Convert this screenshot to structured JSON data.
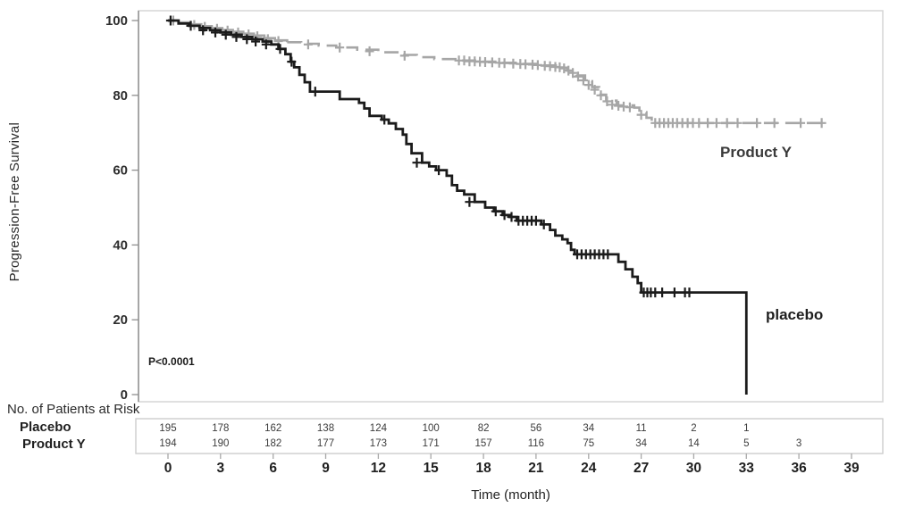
{
  "chart_data": {
    "type": "line",
    "subtype": "kaplan-meier-step",
    "title": "",
    "ylabel": "Progression-Free Survival",
    "xlabel": "Time (month)",
    "annotation": "P<0.0001",
    "xlim": [
      0,
      39
    ],
    "ylim": [
      0,
      100
    ],
    "xticks": [
      0,
      3,
      6,
      9,
      12,
      15,
      18,
      21,
      24,
      27,
      30,
      33,
      36,
      39
    ],
    "yticks": [
      0,
      20,
      40,
      60,
      80,
      100
    ],
    "grid": false,
    "legend_position": "curve-labels-inline",
    "colors": {
      "frame": "#d6d6d6",
      "axis": "#8f8f8f",
      "risk_box": "#c9c9c9",
      "risk_tick": "#a8a8a8"
    },
    "series": [
      {
        "name": "Product Y",
        "key": "product-y",
        "color": "#a6a6a6",
        "line_width": 2.6,
        "dash": [
          16,
          8
        ],
        "dash_from": 6.8,
        "end": 37.4,
        "steps": [
          [
            0,
            100
          ],
          [
            0.6,
            99.5
          ],
          [
            1.3,
            99
          ],
          [
            1.9,
            98.5
          ],
          [
            2.5,
            98
          ],
          [
            3.1,
            97.5
          ],
          [
            3.7,
            97
          ],
          [
            4.3,
            96.5
          ],
          [
            4.9,
            96
          ],
          [
            5.5,
            95.3
          ],
          [
            6.1,
            94.7
          ],
          [
            6.8,
            94.2
          ],
          [
            7.6,
            93.8
          ],
          [
            8.6,
            93.3
          ],
          [
            9.6,
            92.8
          ],
          [
            10.8,
            92.2
          ],
          [
            12.0,
            91.5
          ],
          [
            13.2,
            90.8
          ],
          [
            14.2,
            90.2
          ],
          [
            15.2,
            89.7
          ],
          [
            16.4,
            89.3
          ],
          [
            17.6,
            89.0
          ],
          [
            18.8,
            88.7
          ],
          [
            20.0,
            88.4
          ],
          [
            21.2,
            88.0
          ],
          [
            22.3,
            87.4
          ],
          [
            22.8,
            86.6
          ],
          [
            23.3,
            85.3
          ],
          [
            23.8,
            83.8
          ],
          [
            24.2,
            82.2
          ],
          [
            24.6,
            80.2
          ],
          [
            25.0,
            78.6
          ],
          [
            25.6,
            77.3
          ],
          [
            26.6,
            76.7
          ],
          [
            26.9,
            75.5
          ],
          [
            27.3,
            74.0
          ],
          [
            27.6,
            72.6
          ]
        ],
        "censors": [
          [
            0.3,
            100
          ],
          [
            1.5,
            98.8
          ],
          [
            2.1,
            98.3
          ],
          [
            2.8,
            97.8
          ],
          [
            3.4,
            97.3
          ],
          [
            4.0,
            96.8
          ],
          [
            4.6,
            96.3
          ],
          [
            5.1,
            95.8
          ],
          [
            5.7,
            95.0
          ],
          [
            6.3,
            94.5
          ],
          [
            8.0,
            93.6
          ],
          [
            9.8,
            92.8
          ],
          [
            11.5,
            91.8
          ],
          [
            13.5,
            90.6
          ],
          [
            16.6,
            89.3
          ],
          [
            16.9,
            89.3
          ],
          [
            17.2,
            89.1
          ],
          [
            17.5,
            89.1
          ],
          [
            17.8,
            89.0
          ],
          [
            18.1,
            88.9
          ],
          [
            18.5,
            88.8
          ],
          [
            18.9,
            88.7
          ],
          [
            19.2,
            88.6
          ],
          [
            19.7,
            88.5
          ],
          [
            20.1,
            88.4
          ],
          [
            20.4,
            88.3
          ],
          [
            20.8,
            88.2
          ],
          [
            21.1,
            88.1
          ],
          [
            21.5,
            87.9
          ],
          [
            21.8,
            87.8
          ],
          [
            22.1,
            87.6
          ],
          [
            22.35,
            87.5
          ],
          [
            22.6,
            87.2
          ],
          [
            22.85,
            86.6
          ],
          [
            23.1,
            86.0
          ],
          [
            23.4,
            85.0
          ],
          [
            23.7,
            84.0
          ],
          [
            24.0,
            82.8
          ],
          [
            24.35,
            81.5
          ],
          [
            24.7,
            80.0
          ],
          [
            25.05,
            78.4
          ],
          [
            25.35,
            77.5
          ],
          [
            25.7,
            77.2
          ],
          [
            26.0,
            77.0
          ],
          [
            26.35,
            76.8
          ],
          [
            27.0,
            74.8
          ],
          [
            27.8,
            72.6
          ],
          [
            28.05,
            72.6
          ],
          [
            28.3,
            72.6
          ],
          [
            28.55,
            72.6
          ],
          [
            28.8,
            72.6
          ],
          [
            29.05,
            72.6
          ],
          [
            29.35,
            72.6
          ],
          [
            29.65,
            72.6
          ],
          [
            29.95,
            72.6
          ],
          [
            30.3,
            72.6
          ],
          [
            30.8,
            72.6
          ],
          [
            31.3,
            72.6
          ],
          [
            31.9,
            72.6
          ],
          [
            32.5,
            72.6
          ],
          [
            33.6,
            72.6
          ],
          [
            34.6,
            72.6
          ],
          [
            36.1,
            72.6
          ],
          [
            37.3,
            72.6
          ]
        ]
      },
      {
        "name": "placebo",
        "key": "placebo",
        "color": "#1b1b1b",
        "line_width": 2.8,
        "dash": null,
        "dash_from": null,
        "end": 33,
        "steps": [
          [
            0,
            100
          ],
          [
            0.6,
            99.2
          ],
          [
            1.2,
            98.6
          ],
          [
            1.8,
            98
          ],
          [
            2.4,
            97.4
          ],
          [
            3.0,
            96.8
          ],
          [
            3.6,
            96.2
          ],
          [
            4.2,
            95.6
          ],
          [
            4.8,
            95
          ],
          [
            5.4,
            94.4
          ],
          [
            5.9,
            93.6
          ],
          [
            6.3,
            92.4
          ],
          [
            6.7,
            91
          ],
          [
            7.0,
            89
          ],
          [
            7.2,
            87.5
          ],
          [
            7.5,
            85.5
          ],
          [
            7.8,
            83.5
          ],
          [
            8.1,
            81
          ],
          [
            9.8,
            79
          ],
          [
            10.9,
            78
          ],
          [
            11.2,
            76.5
          ],
          [
            11.5,
            74.5
          ],
          [
            12.2,
            73.5
          ],
          [
            12.6,
            72.5
          ],
          [
            13.0,
            71
          ],
          [
            13.4,
            69.5
          ],
          [
            13.6,
            67
          ],
          [
            13.9,
            64.5
          ],
          [
            14.5,
            62
          ],
          [
            14.9,
            61
          ],
          [
            15.3,
            60
          ],
          [
            15.9,
            58.5
          ],
          [
            16.2,
            56
          ],
          [
            16.5,
            54.5
          ],
          [
            16.9,
            53.5
          ],
          [
            17.5,
            51.5
          ],
          [
            18.1,
            50
          ],
          [
            18.6,
            49
          ],
          [
            19.1,
            48
          ],
          [
            19.5,
            47.5
          ],
          [
            19.9,
            46.5
          ],
          [
            21.3,
            45.5
          ],
          [
            21.8,
            44
          ],
          [
            22.1,
            42.5
          ],
          [
            22.5,
            41.5
          ],
          [
            22.8,
            40.5
          ],
          [
            23.0,
            38.7
          ],
          [
            23.2,
            37.5
          ],
          [
            25.7,
            35.5
          ],
          [
            26.1,
            33.5
          ],
          [
            26.5,
            31.5
          ],
          [
            26.8,
            29.8
          ],
          [
            27.0,
            27.3
          ],
          [
            33,
            0
          ]
        ],
        "censors": [
          [
            0.15,
            100
          ],
          [
            1.3,
            98.6
          ],
          [
            2.0,
            97.4
          ],
          [
            2.7,
            96.8
          ],
          [
            3.3,
            96.2
          ],
          [
            3.9,
            95.6
          ],
          [
            4.5,
            95.0
          ],
          [
            5.0,
            94.4
          ],
          [
            5.6,
            93.6
          ],
          [
            6.4,
            92.4
          ],
          [
            7.05,
            89.0
          ],
          [
            8.4,
            81.0
          ],
          [
            12.35,
            73.5
          ],
          [
            14.2,
            62.0
          ],
          [
            15.45,
            60.0
          ],
          [
            17.2,
            51.5
          ],
          [
            18.7,
            49.0
          ],
          [
            19.2,
            48.0
          ],
          [
            19.6,
            47.5
          ],
          [
            20.0,
            46.5
          ],
          [
            20.25,
            46.5
          ],
          [
            20.5,
            46.5
          ],
          [
            20.75,
            46.5
          ],
          [
            21.0,
            46.5
          ],
          [
            21.45,
            45.5
          ],
          [
            23.35,
            37.5
          ],
          [
            23.6,
            37.5
          ],
          [
            23.85,
            37.5
          ],
          [
            24.1,
            37.5
          ],
          [
            24.35,
            37.5
          ],
          [
            24.6,
            37.5
          ],
          [
            24.85,
            37.5
          ],
          [
            25.1,
            37.5
          ],
          [
            27.15,
            27.3
          ],
          [
            27.35,
            27.3
          ],
          [
            27.55,
            27.3
          ],
          [
            27.8,
            27.3
          ],
          [
            28.2,
            27.3
          ],
          [
            28.9,
            27.3
          ],
          [
            29.5,
            27.3
          ],
          [
            29.75,
            27.3
          ]
        ]
      }
    ],
    "at_risk": {
      "title": "No. of Patients at Risk",
      "rows": [
        {
          "label": "Placebo",
          "values": [
            195,
            178,
            162,
            138,
            124,
            100,
            82,
            56,
            34,
            11,
            2,
            1
          ]
        },
        {
          "label": "Product Y",
          "values": [
            194,
            190,
            182,
            177,
            173,
            171,
            157,
            116,
            75,
            34,
            14,
            5,
            3
          ]
        }
      ]
    }
  }
}
